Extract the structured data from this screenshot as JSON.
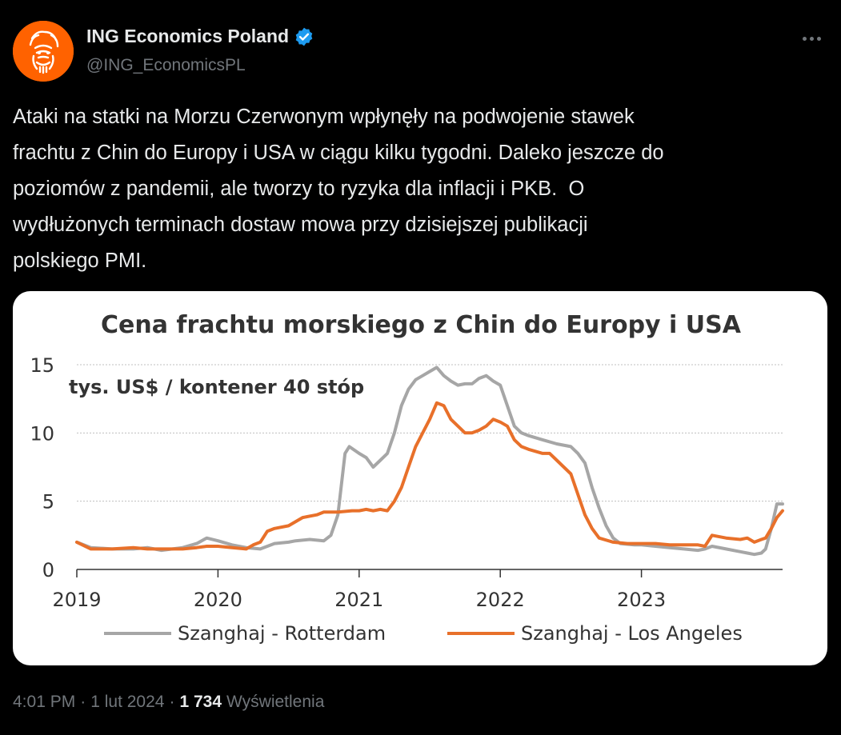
{
  "author": {
    "display_name": "ING Economics Poland",
    "handle": "@ING_EconomicsPL",
    "avatar_icon": "ing-lion-logo",
    "verified_icon": "verified-badge-icon",
    "brand_color": "#ff6200"
  },
  "tweet": {
    "text": "Ataki na statki na Morzu Czerwonym wpłynęły na podwojenie stawek\nfrachtu z Chin do Europy i USA w ciągu kilku tygodni. Daleko jeszcze do\npoziomów z pandemii, ale tworzy to ryzyka dla inflacji i PKB.  O\nwydłużonych terminach dostaw mowa przy dzisiejszej publikacji\npolskiego PMI."
  },
  "footer": {
    "time": "4:01 PM",
    "sep1": "·",
    "date": "1 lut 2024",
    "sep2": "·",
    "views": "1 734",
    "views_label": "Wyświetlenia"
  },
  "chart_data": {
    "type": "line",
    "title": "Cena frachtu morskiego z Chin do Europy i USA",
    "unit_label": "tys. US$ / kontener 40 stóp",
    "ylim": [
      0,
      15
    ],
    "yticks": [
      0,
      5,
      10,
      15
    ],
    "xlim": [
      2019,
      2024
    ],
    "xticks": [
      2019,
      2020,
      2021,
      2022,
      2023
    ],
    "grid": true,
    "legend_position": "bottom",
    "series": [
      {
        "name": "Szanghaj - Rotterdam",
        "color": "#a6a6a6",
        "x": [
          2019.0,
          2019.1,
          2019.25,
          2019.4,
          2019.5,
          2019.6,
          2019.75,
          2019.85,
          2019.92,
          2020.0,
          2020.1,
          2020.2,
          2020.3,
          2020.4,
          2020.5,
          2020.55,
          2020.65,
          2020.75,
          2020.8,
          2020.85,
          2020.9,
          2020.93,
          2021.0,
          2021.05,
          2021.1,
          2021.15,
          2021.2,
          2021.25,
          2021.3,
          2021.35,
          2021.4,
          2021.45,
          2021.5,
          2021.55,
          2021.6,
          2021.65,
          2021.7,
          2021.75,
          2021.8,
          2021.85,
          2021.9,
          2021.95,
          2022.0,
          2022.05,
          2022.1,
          2022.15,
          2022.2,
          2022.3,
          2022.4,
          2022.5,
          2022.55,
          2022.6,
          2022.65,
          2022.7,
          2022.75,
          2022.8,
          2022.85,
          2022.95,
          2023.0,
          2023.1,
          2023.2,
          2023.3,
          2023.4,
          2023.45,
          2023.5,
          2023.6,
          2023.7,
          2023.75,
          2023.8,
          2023.85,
          2023.88,
          2023.92,
          2023.96,
          2024.0
        ],
        "values": [
          2.0,
          1.6,
          1.5,
          1.5,
          1.6,
          1.4,
          1.6,
          1.9,
          2.3,
          2.1,
          1.8,
          1.6,
          1.5,
          1.9,
          2.0,
          2.1,
          2.2,
          2.1,
          2.5,
          4.0,
          8.5,
          9.0,
          8.5,
          8.2,
          7.5,
          8.0,
          8.5,
          10.0,
          12.0,
          13.2,
          13.9,
          14.2,
          14.5,
          14.8,
          14.2,
          13.8,
          13.5,
          13.6,
          13.6,
          14.0,
          14.2,
          13.8,
          13.5,
          12.0,
          10.5,
          10.0,
          9.8,
          9.5,
          9.2,
          9.0,
          8.5,
          7.8,
          6.0,
          4.5,
          3.2,
          2.3,
          1.9,
          1.8,
          1.8,
          1.7,
          1.6,
          1.5,
          1.4,
          1.5,
          1.7,
          1.5,
          1.3,
          1.2,
          1.1,
          1.2,
          1.5,
          3.0,
          4.8,
          4.8
        ]
      },
      {
        "name": "Szanghaj - Los Angeles",
        "color": "#e8702a",
        "x": [
          2019.0,
          2019.1,
          2019.25,
          2019.4,
          2019.5,
          2019.6,
          2019.75,
          2019.85,
          2019.92,
          2020.0,
          2020.1,
          2020.2,
          2020.25,
          2020.3,
          2020.35,
          2020.4,
          2020.5,
          2020.6,
          2020.7,
          2020.75,
          2020.85,
          2020.95,
          2021.0,
          2021.05,
          2021.1,
          2021.15,
          2021.2,
          2021.25,
          2021.3,
          2021.35,
          2021.4,
          2021.45,
          2021.5,
          2021.55,
          2021.6,
          2021.65,
          2021.7,
          2021.75,
          2021.8,
          2021.85,
          2021.9,
          2021.95,
          2022.0,
          2022.05,
          2022.1,
          2022.15,
          2022.2,
          2022.3,
          2022.35,
          2022.4,
          2022.45,
          2022.5,
          2022.55,
          2022.6,
          2022.65,
          2022.7,
          2022.8,
          2022.9,
          2023.0,
          2023.1,
          2023.2,
          2023.3,
          2023.4,
          2023.45,
          2023.5,
          2023.6,
          2023.7,
          2023.75,
          2023.8,
          2023.85,
          2023.88,
          2023.92,
          2023.96,
          2024.0
        ],
        "values": [
          2.0,
          1.5,
          1.5,
          1.6,
          1.5,
          1.5,
          1.5,
          1.6,
          1.7,
          1.7,
          1.6,
          1.5,
          1.8,
          2.0,
          2.8,
          3.0,
          3.2,
          3.8,
          4.0,
          4.2,
          4.2,
          4.3,
          4.3,
          4.4,
          4.3,
          4.4,
          4.3,
          5.0,
          6.0,
          7.5,
          9.0,
          10.0,
          11.0,
          12.2,
          12.0,
          11.0,
          10.5,
          10.0,
          10.0,
          10.2,
          10.5,
          11.0,
          10.8,
          10.5,
          9.5,
          9.0,
          8.8,
          8.5,
          8.5,
          8.0,
          7.5,
          7.0,
          5.5,
          4.0,
          3.0,
          2.3,
          2.0,
          1.9,
          1.9,
          1.9,
          1.8,
          1.8,
          1.8,
          1.7,
          2.5,
          2.3,
          2.2,
          2.3,
          2.0,
          2.2,
          2.3,
          3.0,
          3.8,
          4.3
        ]
      }
    ]
  }
}
